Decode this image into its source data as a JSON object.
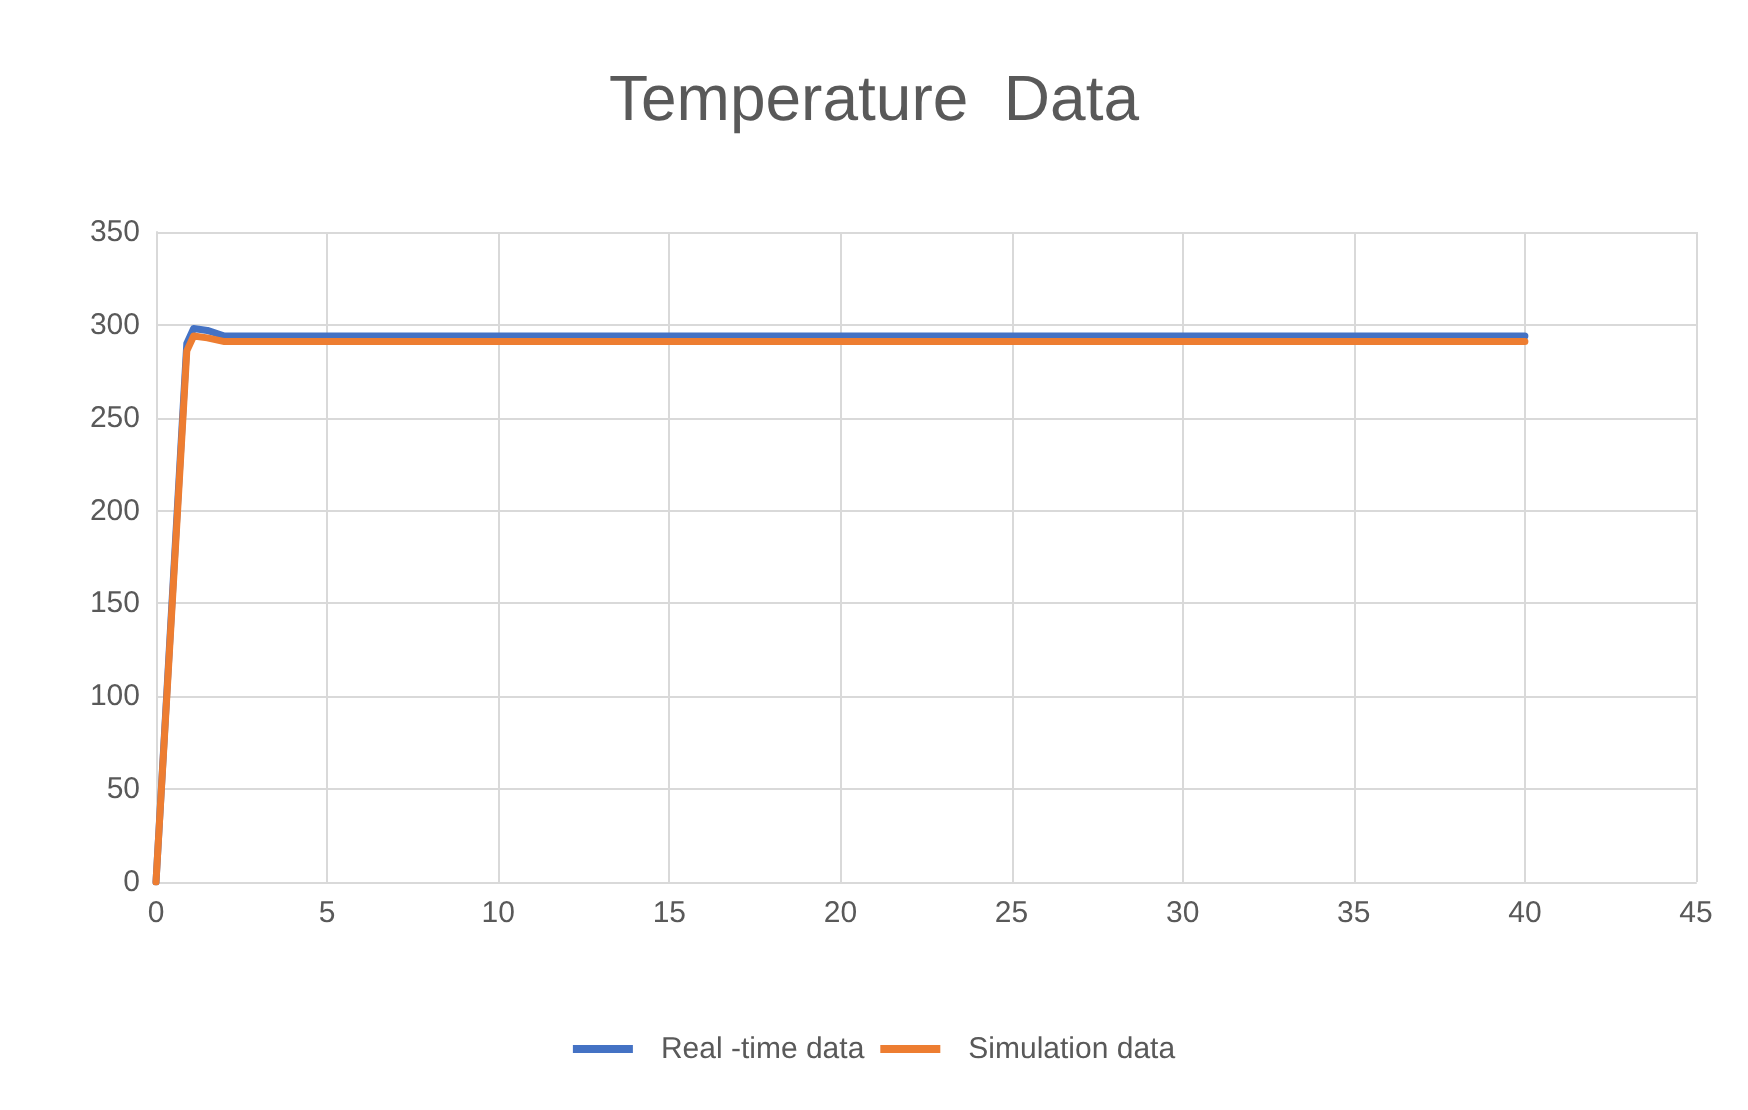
{
  "chart_data": {
    "type": "line",
    "title": "Temperature  Data",
    "xlim": [
      0,
      45
    ],
    "xticks": [
      0,
      5,
      10,
      15,
      20,
      25,
      30,
      35,
      40,
      45
    ],
    "ylim": [
      0,
      350
    ],
    "yticks": [
      0,
      50,
      100,
      150,
      200,
      250,
      300,
      350
    ],
    "grid": true,
    "legend": "bottom",
    "marker": "none",
    "line_style": "solid",
    "series": [
      {
        "name": "Real -time data",
        "color": "#4472c4",
        "x": [
          0,
          0.9,
          1.1,
          1.5,
          2,
          40
        ],
        "values": [
          0,
          290,
          298,
          297,
          294,
          294
        ]
      },
      {
        "name": "Simulation data",
        "color": "#ed7d31",
        "x": [
          0,
          0.5,
          0.9,
          1.1,
          1.5,
          2,
          40
        ],
        "values": [
          0,
          158,
          286,
          294,
          293,
          291,
          291
        ]
      }
    ]
  }
}
